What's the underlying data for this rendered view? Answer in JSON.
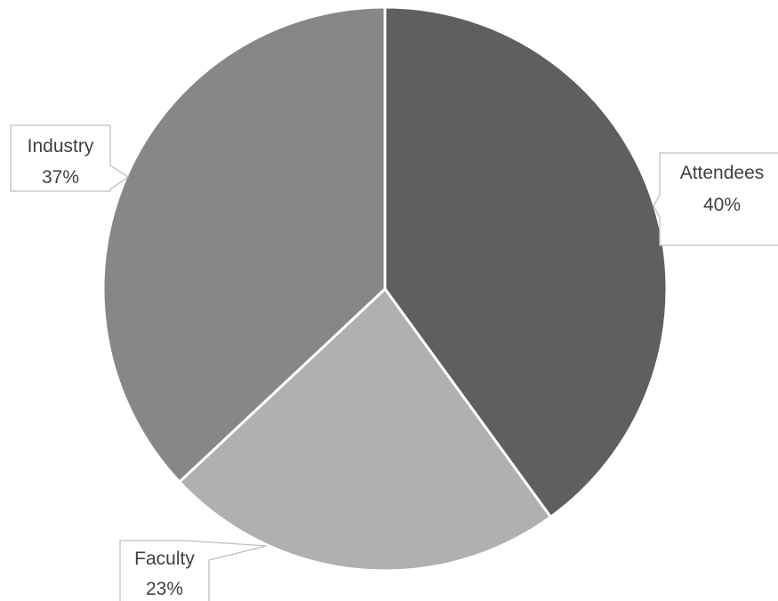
{
  "chart_data": {
    "type": "pie",
    "title": "",
    "slices": [
      {
        "label": "Attendees",
        "value": 40,
        "value_label": "40%",
        "color": "#5f5f5f"
      },
      {
        "label": "Faculty",
        "value": 23,
        "value_label": "23%",
        "color": "#b0b0b0"
      },
      {
        "label": "Industry",
        "value": 37,
        "value_label": "37%",
        "color": "#878787"
      }
    ],
    "start_angle": "12 o'clock",
    "direction": "clockwise",
    "slice_border_color": "#ffffff",
    "legend": "none",
    "data_labels": "callouts outside slices"
  }
}
